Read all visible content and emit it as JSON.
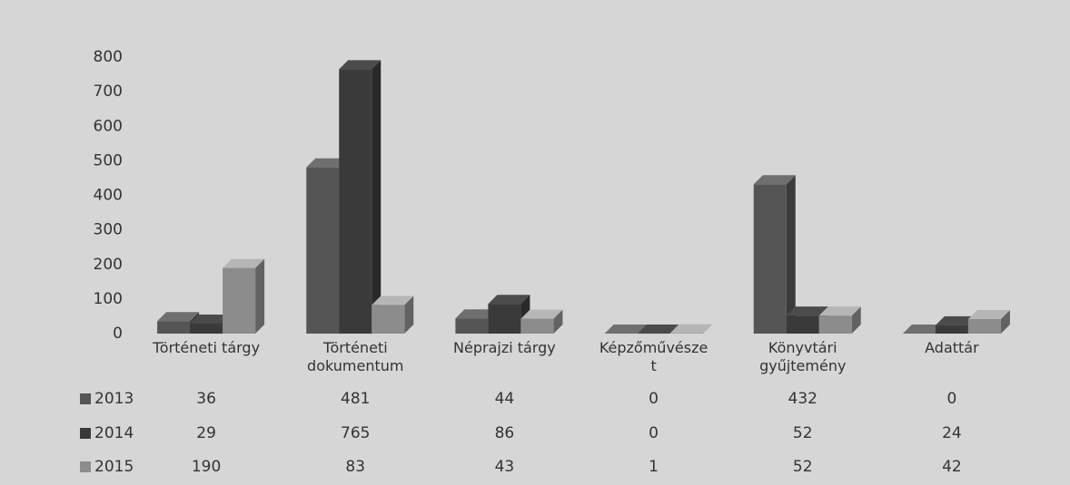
{
  "chart_data": {
    "type": "bar",
    "categories": [
      "Történeti tárgy",
      "Történeti dokumentum",
      "Néprajzi tárgy",
      "Képzőművészet",
      "Könyvtári gyűjtemény",
      "Adattár"
    ],
    "series": [
      {
        "name": "2013",
        "color": "#555555",
        "values": [
          36,
          481,
          44,
          0,
          432,
          0
        ]
      },
      {
        "name": "2014",
        "color": "#3a3a3a",
        "values": [
          29,
          765,
          86,
          0,
          52,
          24
        ]
      },
      {
        "name": "2015",
        "color": "#8c8c8c",
        "values": [
          190,
          83,
          43,
          1,
          52,
          42
        ]
      }
    ],
    "ylim": [
      0,
      800
    ],
    "yticks": [
      0,
      100,
      200,
      300,
      400,
      500,
      600,
      700,
      800
    ],
    "grid": false
  }
}
